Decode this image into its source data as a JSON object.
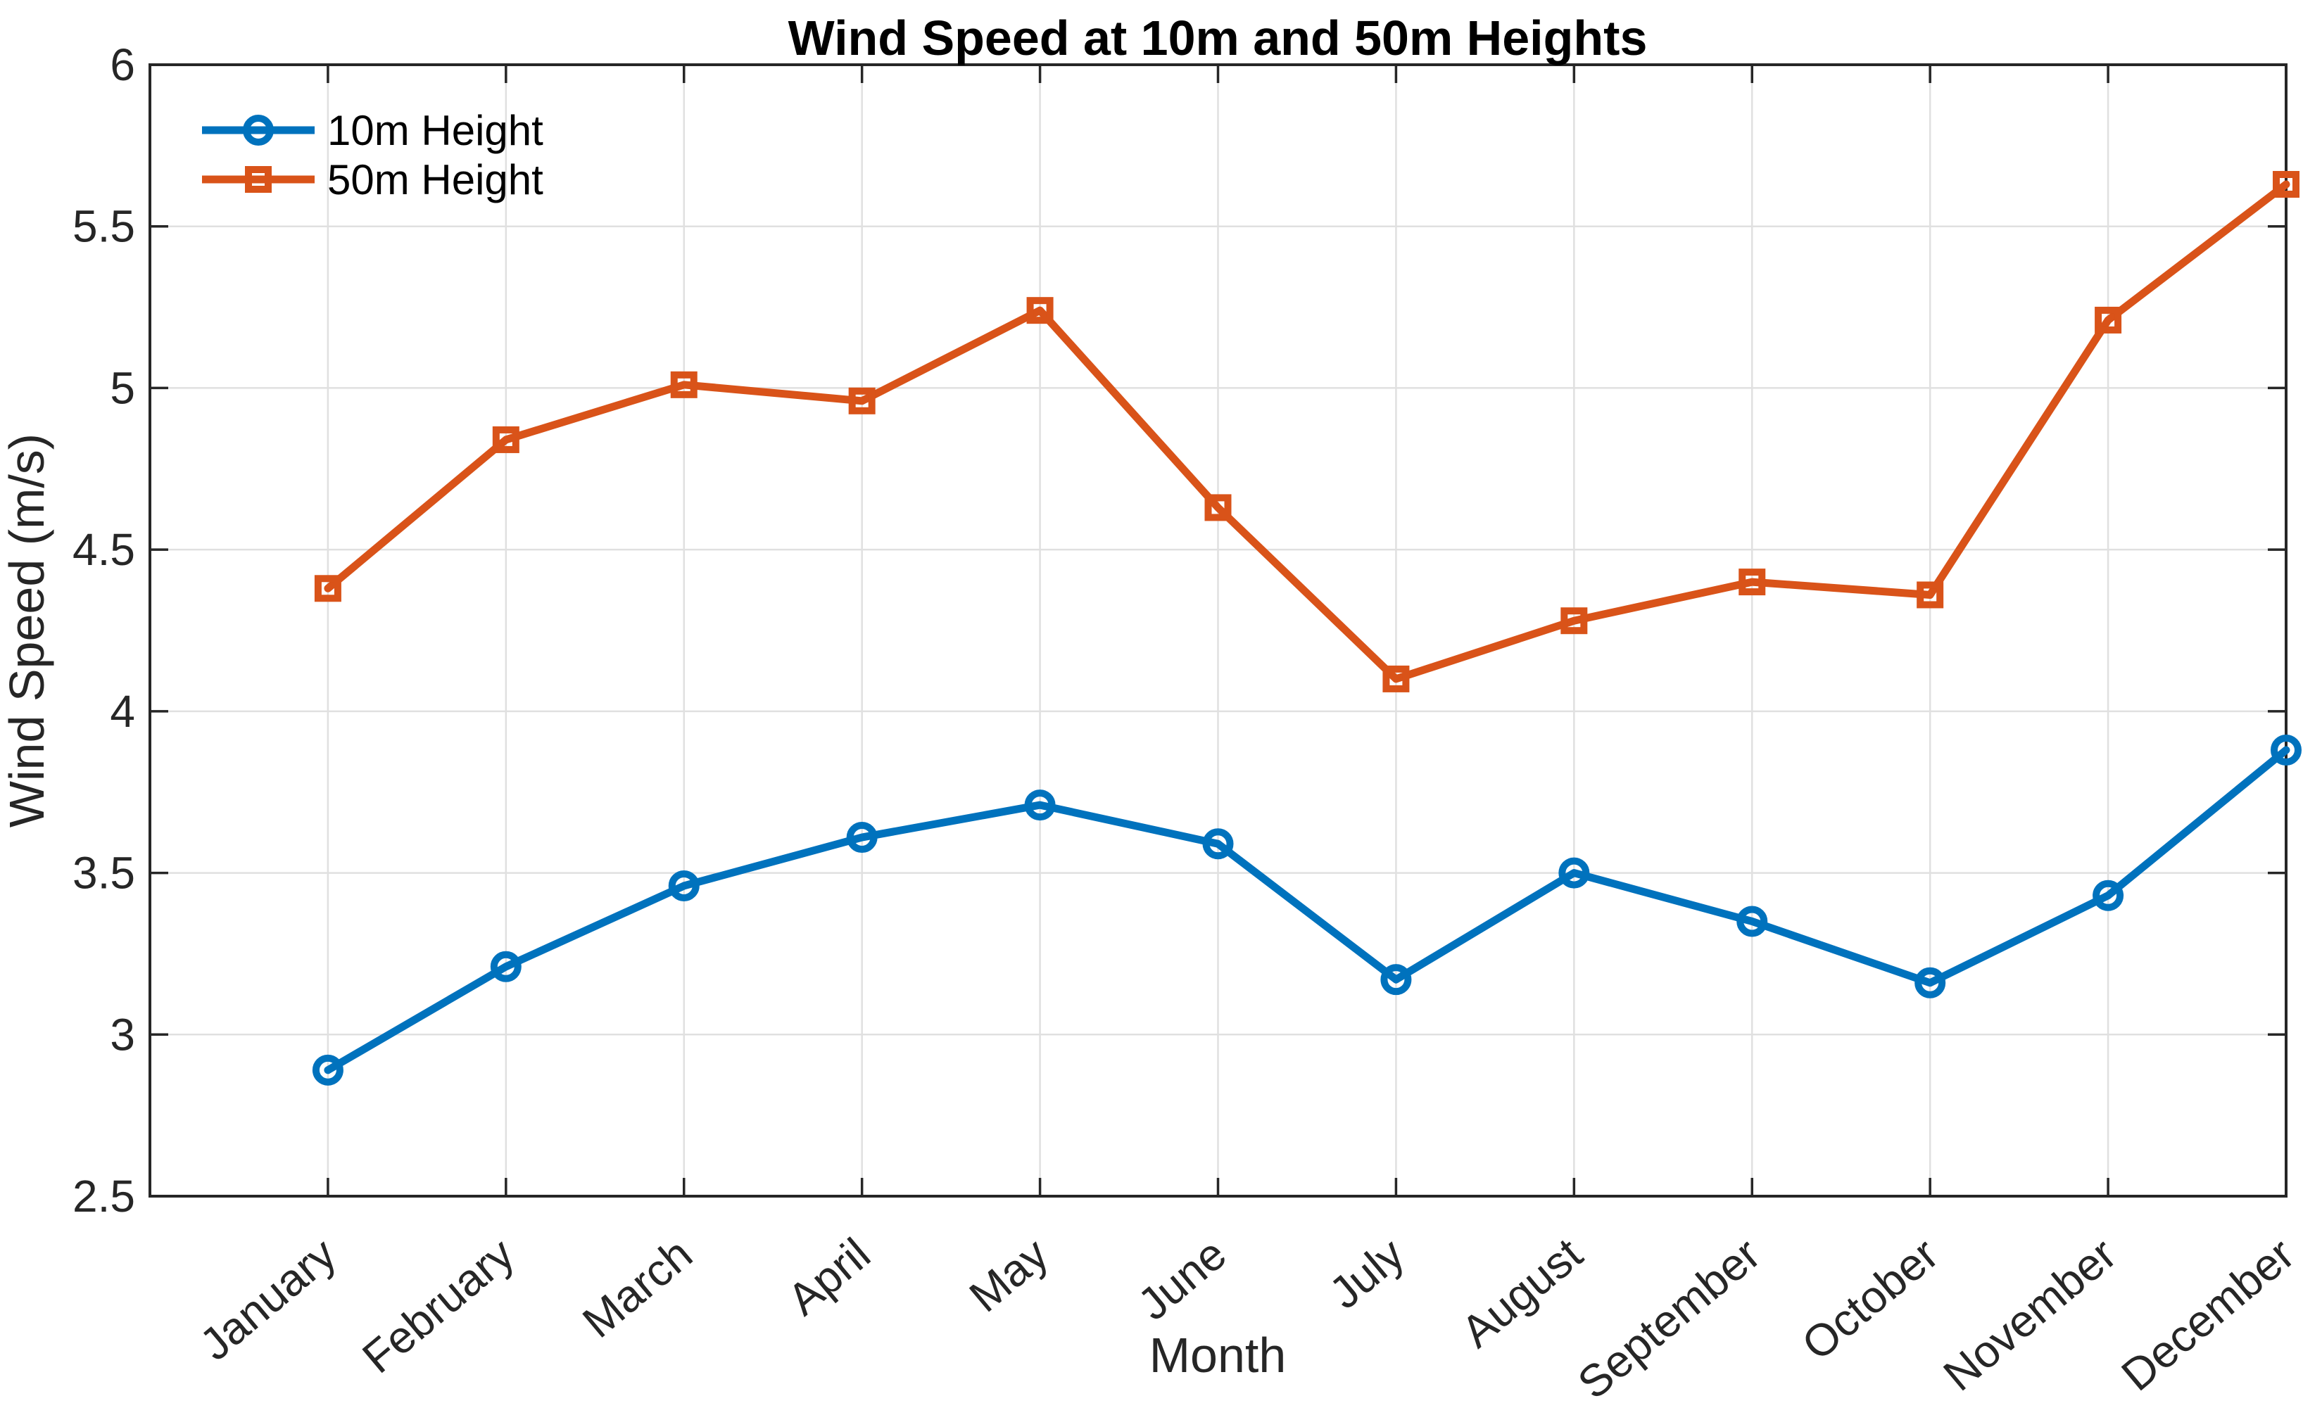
{
  "chart_data": {
    "type": "line",
    "title": "Wind Speed at 10m and 50m Heights",
    "xlabel": "Month",
    "ylabel": "Wind Speed (m/s)",
    "categories": [
      "January",
      "February",
      "March",
      "April",
      "May",
      "June",
      "July",
      "August",
      "September",
      "October",
      "November",
      "December"
    ],
    "series": [
      {
        "name": "10m Height",
        "marker": "circle",
        "color": "#0072BD",
        "values": [
          2.89,
          3.21,
          3.46,
          3.61,
          3.71,
          3.59,
          3.17,
          3.5,
          3.35,
          3.16,
          3.43,
          3.88
        ]
      },
      {
        "name": "50m Height",
        "marker": "square",
        "color": "#D95319",
        "values": [
          4.38,
          4.84,
          5.01,
          4.96,
          5.24,
          4.63,
          4.1,
          4.28,
          4.4,
          4.36,
          5.21,
          5.63
        ]
      }
    ],
    "ylim": [
      2.5,
      6
    ],
    "xlim": [
      0,
      12
    ],
    "ytick_step": 0.5,
    "ytick_labels": [
      "2.5",
      "3",
      "3.5",
      "4",
      "4.5",
      "5",
      "5.5",
      "6"
    ],
    "xtick_angle": -40,
    "grid": true,
    "legend_position": "northwest",
    "axis_color": "#262626",
    "grid_color": "#E0E0E0",
    "background_color": "#FFFFFF"
  }
}
